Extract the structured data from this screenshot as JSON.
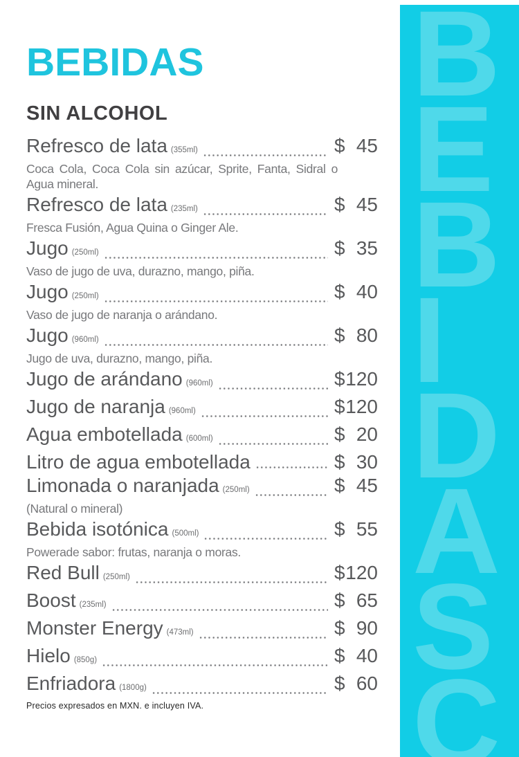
{
  "page": {
    "title": "BEBIDAS",
    "section": "SIN ALCOHOL",
    "currency": "$",
    "footer_note": "Precios expresados en MXN. e incluyen IVA.",
    "items": [
      {
        "name": "Refresco de lata",
        "size": "(355ml)",
        "price": "45",
        "desc": "Coca Cola, Coca Cola sin azúcar, Sprite, Fanta, Sidral o Agua mineral."
      },
      {
        "name": "Refresco de lata",
        "size": "(235ml)",
        "price": "45",
        "desc": "Fresca Fusión, Agua Quina o Ginger Ale."
      },
      {
        "name": "Jugo",
        "size": "(250ml)",
        "price": "35",
        "desc": "Vaso de jugo de uva, durazno, mango, piña."
      },
      {
        "name": "Jugo",
        "size": "(250ml)",
        "price": "40",
        "desc": "Vaso de jugo de naranja o arándano."
      },
      {
        "name": "Jugo",
        "size": "(960ml)",
        "price": "80",
        "desc": "Jugo de uva, durazno, mango, piña."
      },
      {
        "name": "Jugo de arándano",
        "size": "(960ml)",
        "price": "120"
      },
      {
        "name": "Jugo de naranja",
        "size": "(960ml)",
        "price": "120"
      },
      {
        "name": "Agua embotellada",
        "size": "(600ml)",
        "price": "20"
      },
      {
        "name": "Litro de agua embotellada",
        "price": "30"
      },
      {
        "name": "Limonada o naranjada",
        "size": "(250ml)",
        "price": "45",
        "desc": "(Natural o mineral)"
      },
      {
        "name": "Bebida isotónica",
        "size": "(500ml)",
        "price": "55",
        "desc": "Powerade sabor: frutas, naranja o moras."
      },
      {
        "name": "Red Bull",
        "size": "(250ml)",
        "price": "120"
      },
      {
        "name": "Boost",
        "size": "(235ml)",
        "price": "65"
      },
      {
        "name": "Monster Energy",
        "size": "(473ml)",
        "price": "90"
      },
      {
        "name": "Hielo",
        "size": "(850g)",
        "price": "40"
      },
      {
        "name": "Enfriadora",
        "size": "(1800g)",
        "price": "60"
      }
    ]
  },
  "sidebar": {
    "letters": [
      "B",
      "E",
      "B",
      "I",
      "D",
      "A",
      "S",
      "C"
    ]
  },
  "colors": {
    "title_accent": "#1fc4de",
    "sidebar_bg": "#12cde6",
    "sidebar_letter": "#4fd9ea",
    "heading_text": "#414042",
    "item_text": "#58595b",
    "desc_text": "#77787b",
    "leader_dots": "#7a7b7e",
    "footer_text": "#262626"
  }
}
